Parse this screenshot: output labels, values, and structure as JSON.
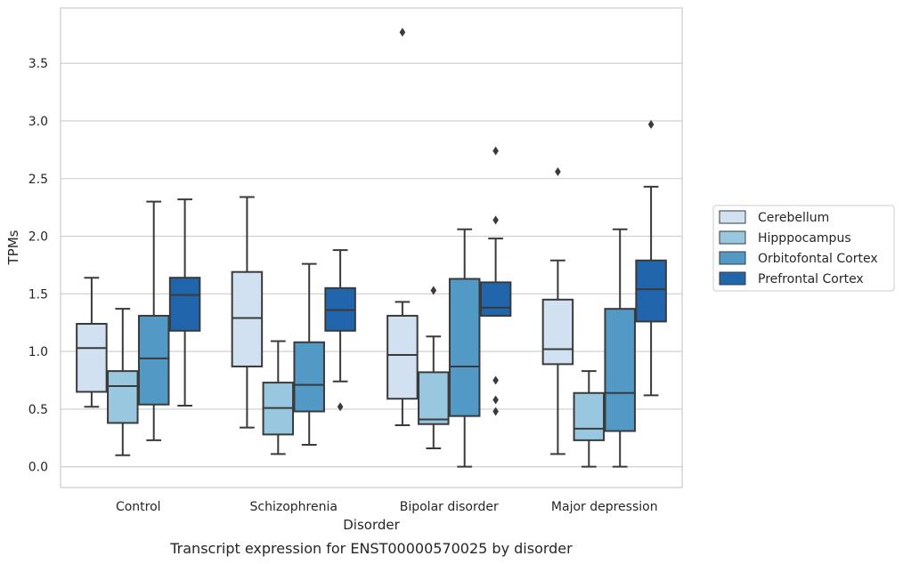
{
  "caption": "Transcript expression for ENST00000570025 by disorder",
  "chart_data": {
    "type": "boxplot",
    "title": "",
    "xlabel": "Disorder",
    "ylabel": "TPMs",
    "ylim": [
      -0.18,
      3.98
    ],
    "yticks": [
      "0.0",
      "0.5",
      "1.0",
      "1.5",
      "2.0",
      "2.5",
      "3.0",
      "3.5"
    ],
    "ytick_values": [
      0.0,
      0.5,
      1.0,
      1.5,
      2.0,
      2.5,
      3.0,
      3.5
    ],
    "grid": true,
    "legend_position": "right",
    "categories": [
      "Control",
      "Schizophrenia",
      "Bipolar disorder",
      "Major depression"
    ],
    "series": [
      {
        "name": "Cerebellum",
        "color": "#d1e1f2",
        "boxes": [
          {
            "whislo": 0.52,
            "q1": 0.65,
            "med": 1.03,
            "q3": 1.24,
            "whishi": 1.64,
            "fliers": []
          },
          {
            "whislo": 0.34,
            "q1": 0.87,
            "med": 1.29,
            "q3": 1.69,
            "whishi": 2.34,
            "fliers": []
          },
          {
            "whislo": 0.36,
            "q1": 0.59,
            "med": 0.97,
            "q3": 1.31,
            "whishi": 1.43,
            "fliers": [
              3.77
            ]
          },
          {
            "whislo": 0.11,
            "q1": 0.89,
            "med": 1.02,
            "q3": 1.45,
            "whishi": 1.79,
            "fliers": [
              2.56
            ]
          }
        ]
      },
      {
        "name": "Hipppocampus",
        "color": "#9ac7e0",
        "boxes": [
          {
            "whislo": 0.1,
            "q1": 0.38,
            "med": 0.7,
            "q3": 0.83,
            "whishi": 1.37,
            "fliers": []
          },
          {
            "whislo": 0.11,
            "q1": 0.28,
            "med": 0.51,
            "q3": 0.73,
            "whishi": 1.09,
            "fliers": []
          },
          {
            "whislo": 0.16,
            "q1": 0.37,
            "med": 0.41,
            "q3": 0.82,
            "whishi": 1.13,
            "fliers": [
              1.53
            ]
          },
          {
            "whislo": 0.0,
            "q1": 0.23,
            "med": 0.33,
            "q3": 0.64,
            "whishi": 0.83,
            "fliers": []
          }
        ]
      },
      {
        "name": "Orbitofontal Cortex",
        "color": "#5399c6",
        "boxes": [
          {
            "whislo": 0.23,
            "q1": 0.54,
            "med": 0.94,
            "q3": 1.31,
            "whishi": 2.3,
            "fliers": []
          },
          {
            "whislo": 0.19,
            "q1": 0.48,
            "med": 0.71,
            "q3": 1.08,
            "whishi": 1.76,
            "fliers": []
          },
          {
            "whislo": 0.0,
            "q1": 0.44,
            "med": 0.87,
            "q3": 1.63,
            "whishi": 2.06,
            "fliers": []
          },
          {
            "whislo": 0.0,
            "q1": 0.31,
            "med": 0.64,
            "q3": 1.37,
            "whishi": 2.06,
            "fliers": []
          }
        ]
      },
      {
        "name": "Prefrontal Cortex",
        "color": "#2166ac",
        "boxes": [
          {
            "whislo": 0.53,
            "q1": 1.18,
            "med": 1.49,
            "q3": 1.64,
            "whishi": 2.32,
            "fliers": []
          },
          {
            "whislo": 0.74,
            "q1": 1.18,
            "med": 1.36,
            "q3": 1.55,
            "whishi": 1.88,
            "fliers": [
              0.52
            ]
          },
          {
            "whislo": 1.31,
            "q1": 1.31,
            "med": 1.38,
            "q3": 1.6,
            "whishi": 1.98,
            "fliers": [
              2.74,
              2.14,
              0.75,
              0.58,
              0.48
            ]
          },
          {
            "whislo": 0.62,
            "q1": 1.26,
            "med": 1.54,
            "q3": 1.79,
            "whishi": 2.43,
            "fliers": [
              2.97
            ]
          }
        ]
      }
    ]
  }
}
